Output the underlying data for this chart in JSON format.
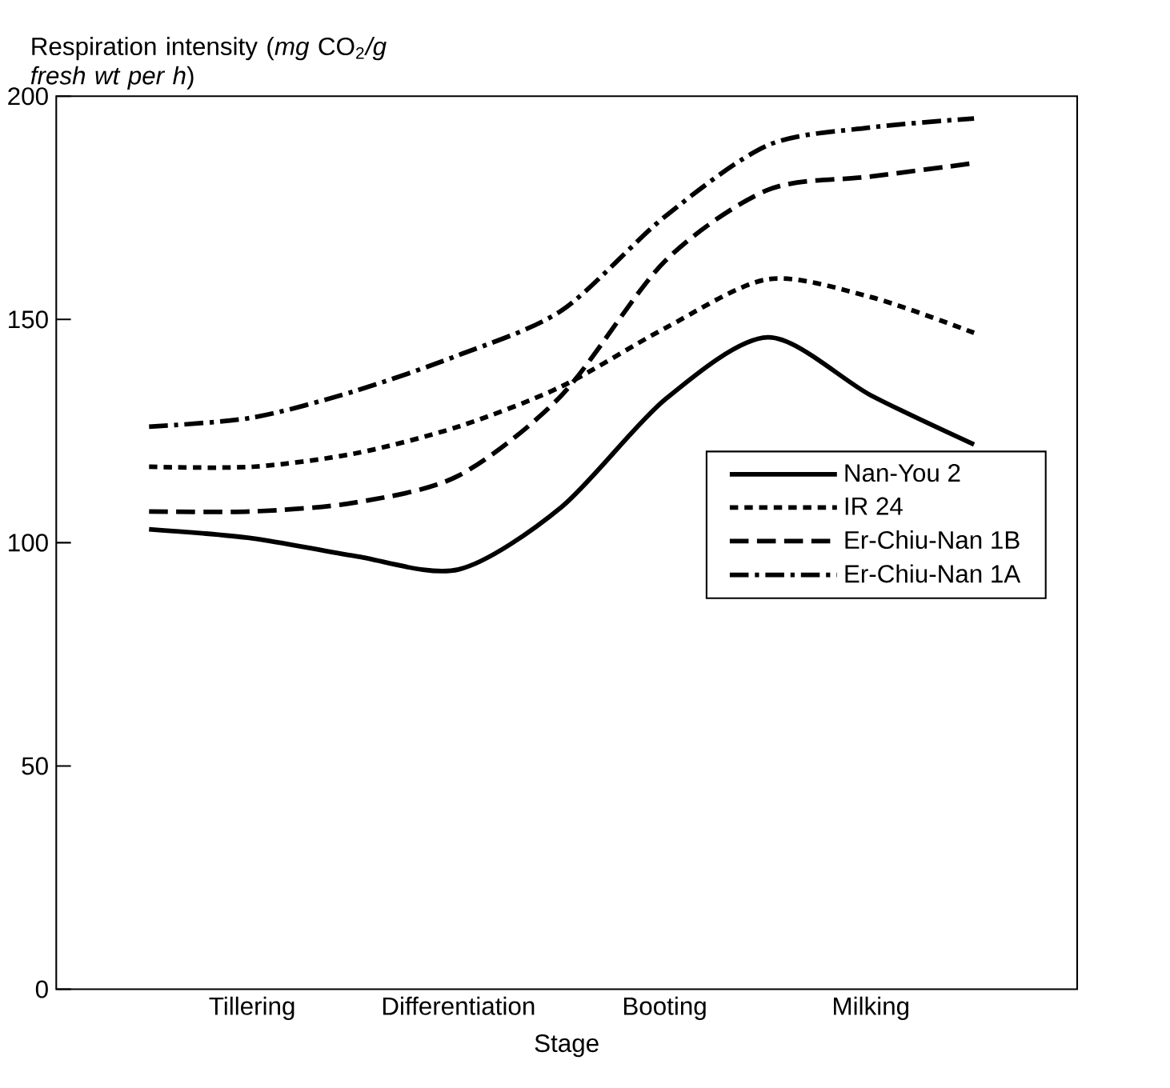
{
  "chart_data": {
    "type": "line",
    "ylabel": "Respiration intensity (*mg* CO$_{2}$*/g fresh wt per h*)",
    "xlabel": "Stage",
    "categories": [
      null,
      "Tillering",
      null,
      "Differentiation",
      null,
      "Booting",
      null,
      "Milking",
      null
    ],
    "series": [
      {
        "name": "Nan-You 2",
        "color": "#000000",
        "line_style": "solid",
        "values": [
          103,
          101,
          97,
          94,
          108,
          132,
          146,
          133,
          122
        ]
      },
      {
        "name": "IR 24",
        "color": "#000000",
        "line_style": "dotted",
        "values": [
          117,
          117,
          120,
          126,
          135,
          148,
          159,
          155,
          147
        ]
      },
      {
        "name": "Er-Chiu-Nan 1B",
        "color": "#000000",
        "line_style": "dashed",
        "values": [
          107,
          107,
          109,
          115,
          133,
          163,
          179,
          182,
          185
        ]
      },
      {
        "name": "Er-Chiu-Nan 1A",
        "color": "#000000",
        "line_style": "dashdot",
        "values": [
          126,
          128,
          134,
          142,
          152,
          173,
          189,
          193,
          195
        ]
      }
    ],
    "ylim": [
      0,
      200
    ],
    "yticks": [
      0,
      50,
      100,
      150,
      200
    ],
    "legend": "right",
    "marker": "none",
    "grid": false
  }
}
